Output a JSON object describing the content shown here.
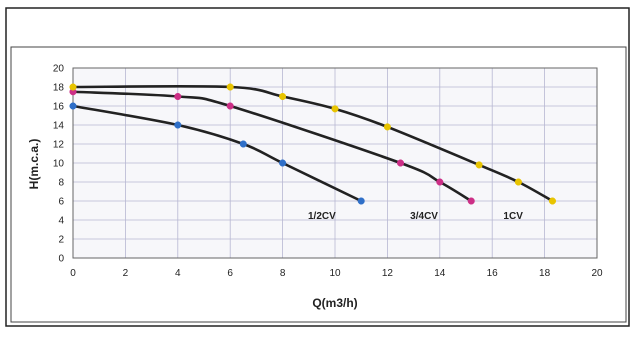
{
  "chart_data": {
    "type": "line",
    "title": "",
    "xlabel": "Q(m3/h)",
    "ylabel": "H(m.c.a.)",
    "xlim": [
      0,
      20
    ],
    "ylim": [
      0,
      20
    ],
    "x_ticks": [
      "0",
      "2",
      "4",
      "6",
      "8",
      "10",
      "12",
      "14",
      "16",
      "18",
      "20"
    ],
    "y_ticks": [
      "0",
      "2",
      "4",
      "6",
      "8",
      "10",
      "12",
      "14",
      "16",
      "18",
      "20"
    ],
    "grid": true,
    "legend": "none",
    "series": [
      {
        "name": "1/2CV",
        "color": "#2f6fc8",
        "points": [
          [
            0,
            16
          ],
          [
            4,
            14
          ],
          [
            6.5,
            12
          ],
          [
            8,
            10
          ],
          [
            11,
            6
          ]
        ]
      },
      {
        "name": "3/4CV",
        "color": "#cc2e86",
        "points": [
          [
            0,
            17.5
          ],
          [
            4,
            17
          ],
          [
            6,
            16
          ],
          [
            12.5,
            10
          ],
          [
            14,
            8
          ],
          [
            15.2,
            6
          ]
        ]
      },
      {
        "name": "1CV",
        "color": "#e8c400",
        "points": [
          [
            0,
            18
          ],
          [
            6,
            18
          ],
          [
            8,
            17
          ],
          [
            10,
            15.7
          ],
          [
            12,
            13.8
          ],
          [
            15.5,
            9.8
          ],
          [
            17,
            8
          ],
          [
            18.3,
            6
          ]
        ]
      }
    ],
    "annotations": [
      {
        "text": "1/2CV",
        "x": 9.5,
        "y": 4.1
      },
      {
        "text": "3/4CV",
        "x": 13.4,
        "y": 4.1
      },
      {
        "text": "1CV",
        "x": 16.8,
        "y": 4.1
      }
    ]
  }
}
